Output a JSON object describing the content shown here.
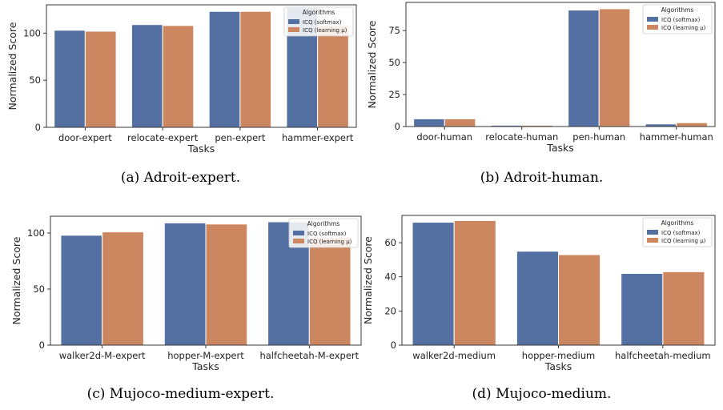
{
  "chart_data": [
    {
      "type": "bar",
      "caption": "(a) Adroit-expert.",
      "xlabel": "Tasks",
      "ylabel": "Normalized Score",
      "categories": [
        "door-expert",
        "relocate-expert",
        "pen-expert",
        "hammer-expert"
      ],
      "series": [
        {
          "name": "ICQ (softmax)",
          "values": [
            103,
            109,
            123,
            127
          ]
        },
        {
          "name": "ICQ (learning μ)",
          "values": [
            102,
            108,
            123,
            108
          ]
        }
      ],
      "ylim": [
        0,
        130
      ],
      "yticks": [
        0,
        50,
        100
      ],
      "legend": {
        "title": "Algorithms",
        "position": "top-right"
      },
      "colors": [
        "#5470a3",
        "#cc8761"
      ],
      "grid": false
    },
    {
      "type": "bar",
      "caption": "(b) Adroit-human.",
      "xlabel": "Tasks",
      "ylabel": "Normalized Score",
      "categories": [
        "door-human",
        "relocate-human",
        "pen-human",
        "hammer-human"
      ],
      "series": [
        {
          "name": "ICQ (softmax)",
          "values": [
            6,
            1,
            91,
            2
          ]
        },
        {
          "name": "ICQ (learning μ)",
          "values": [
            6,
            1,
            92,
            3
          ]
        }
      ],
      "ylim": [
        0,
        97
      ],
      "yticks": [
        0,
        25,
        50,
        75
      ],
      "legend": {
        "title": "Algorithms",
        "position": "top-right"
      },
      "colors": [
        "#5470a3",
        "#cc8761"
      ],
      "grid": false
    },
    {
      "type": "bar",
      "caption": "(c) Mujoco-medium-expert.",
      "xlabel": "Tasks",
      "ylabel": "Normalized Score",
      "categories": [
        "walker2d-M-expert",
        "hopper-M-expert",
        "halfcheetah-M-expert"
      ],
      "series": [
        {
          "name": "ICQ (softmax)",
          "values": [
            98,
            109,
            110
          ]
        },
        {
          "name": "ICQ (learning μ)",
          "values": [
            101,
            108,
            96
          ]
        }
      ],
      "ylim": [
        0,
        115
      ],
      "yticks": [
        0,
        50,
        100
      ],
      "legend": {
        "title": "Algorithms",
        "position": "top-right"
      },
      "colors": [
        "#5470a3",
        "#cc8761"
      ],
      "grid": false
    },
    {
      "type": "bar",
      "caption": "(d) Mujoco-medium.",
      "xlabel": "Tasks",
      "ylabel": "Normalized Score",
      "categories": [
        "walker2d-medium",
        "hopper-medium",
        "halfcheetah-medium"
      ],
      "series": [
        {
          "name": "ICQ (softmax)",
          "values": [
            72,
            55,
            42
          ]
        },
        {
          "name": "ICQ (learning μ)",
          "values": [
            73,
            53,
            43
          ]
        }
      ],
      "ylim": [
        0,
        76
      ],
      "yticks": [
        0,
        20,
        40,
        60
      ],
      "legend": {
        "title": "Algorithms",
        "position": "top-right"
      },
      "colors": [
        "#5470a3",
        "#cc8761"
      ],
      "grid": false
    }
  ]
}
